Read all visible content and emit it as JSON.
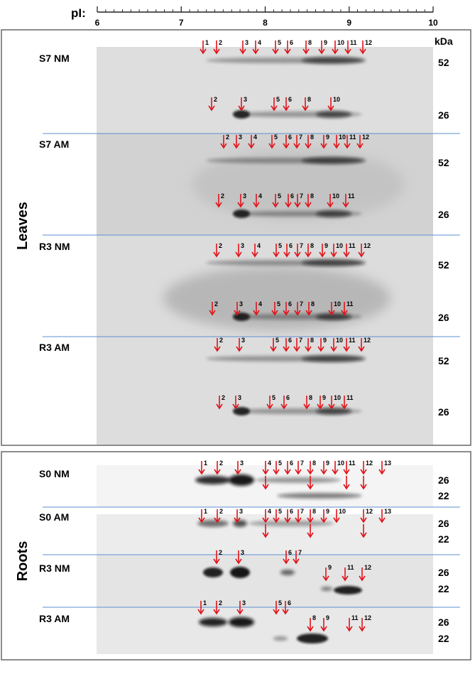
{
  "axis": {
    "label": "pI:",
    "ticks": [
      "6",
      "7",
      "8",
      "9",
      "10"
    ],
    "kda_header": "kDa"
  },
  "colors": {
    "arrow": "#e0141a",
    "divider": "#5b8fd0",
    "frame": "#666666"
  },
  "leaves": {
    "section_label": "Leaves",
    "panels": [
      {
        "label": "S7 NM",
        "mw_top": "52",
        "mw_bottom": "26",
        "top_spots": [
          "1",
          "2",
          "3",
          "4",
          "5",
          "6",
          "8",
          "9",
          "10",
          "11",
          "12"
        ],
        "bottom_spots": [
          "2",
          "3",
          "5",
          "6",
          "8",
          "10"
        ]
      },
      {
        "label": "S7 AM",
        "mw_top": "52",
        "mw_bottom": "26",
        "top_spots": [
          "2",
          "3",
          "4",
          "5",
          "6",
          "7",
          "8",
          "9",
          "10",
          "11",
          "12"
        ],
        "bottom_spots": [
          "2",
          "3",
          "4",
          "5",
          "6",
          "7",
          "8",
          "10",
          "11"
        ]
      },
      {
        "label": "R3 NM",
        "mw_top": "52",
        "mw_bottom": "26",
        "top_spots": [
          "2",
          "3",
          "4",
          "5",
          "6",
          "7",
          "8",
          "9",
          "10",
          "11",
          "12"
        ],
        "bottom_spots": [
          "2",
          "3",
          "4",
          "5",
          "6",
          "7",
          "8",
          "10",
          "11"
        ]
      },
      {
        "label": "R3 AM",
        "mw_top": "52",
        "mw_bottom": "26",
        "top_spots": [
          "2",
          "3",
          "5",
          "6",
          "7",
          "8",
          "9",
          "10",
          "11",
          "12"
        ],
        "bottom_spots": [
          "2",
          "3",
          "5",
          "6",
          "8",
          "9",
          "10",
          "11"
        ]
      }
    ]
  },
  "roots": {
    "section_label": "Roots",
    "panels": [
      {
        "label": "S0 NM",
        "mw_top": "26",
        "mw_bottom": "22",
        "top_spots": [
          "1",
          "2",
          "3",
          "4",
          "5",
          "6",
          "7",
          "8",
          "9",
          "10",
          "11",
          "12",
          "13"
        ]
      },
      {
        "label": "S0 AM",
        "mw_top": "26",
        "mw_bottom": "22",
        "top_spots": [
          "1",
          "2",
          "3",
          "4",
          "5",
          "6",
          "7",
          "8",
          "9",
          "10",
          "12",
          "13"
        ]
      },
      {
        "label": "R3 NM",
        "mw_top": "26",
        "mw_bottom": "22",
        "top_spots": [
          "2",
          "3",
          "6",
          "7",
          "9",
          "11",
          "12"
        ]
      },
      {
        "label": "R3 AM",
        "mw_top": "26",
        "mw_bottom": "22",
        "top_spots": [
          "1",
          "2",
          "3",
          "5",
          "6",
          "8",
          "9",
          "11",
          "12"
        ]
      }
    ]
  }
}
